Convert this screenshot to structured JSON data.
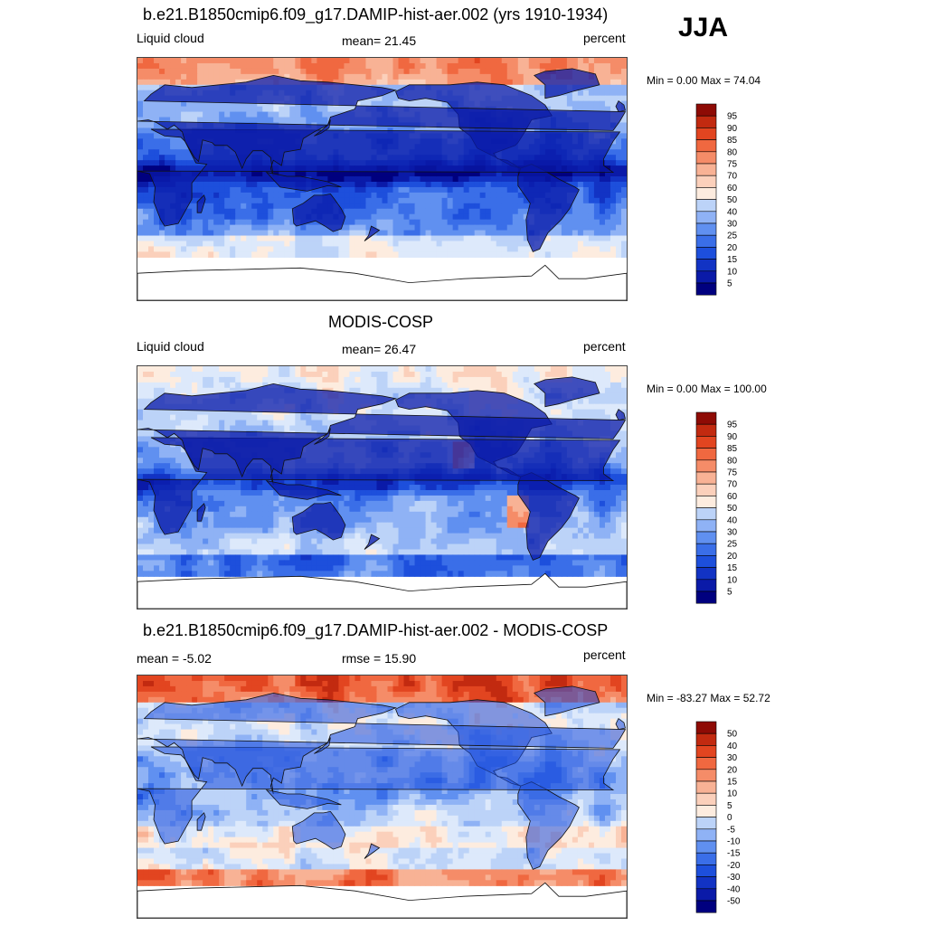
{
  "season": "JJA",
  "palette_levels": [
    "#00007f",
    "#0a1aa8",
    "#1233c4",
    "#1d4fdc",
    "#3a6ee8",
    "#6090f0",
    "#8fb2f5",
    "#bcd3f8",
    "#dde9fb",
    "#fdecdf",
    "#fbd0bb",
    "#f8b295",
    "#f58c68",
    "#f06840",
    "#e24520",
    "#c22a10",
    "#8e0b05"
  ],
  "panels": [
    {
      "id": "model",
      "title": "b.e21.B1850cmip6.f09_g17.DAMIP-hist-aer.002 (yrs 1910-1934)",
      "left_label": "Liquid cloud",
      "center_label": "mean=  21.45",
      "right_label": "percent",
      "minmax": "Min =   0.00 Max =  74.04",
      "colorbar_labels": [
        "95",
        "90",
        "85",
        "80",
        "75",
        "70",
        "60",
        "50",
        "40",
        "30",
        "25",
        "20",
        "15",
        "10",
        "5"
      ],
      "style": "model"
    },
    {
      "id": "obs",
      "title": "MODIS-COSP",
      "left_label": "Liquid cloud",
      "center_label": "mean=  26.47",
      "right_label": "percent",
      "minmax": "Min =   0.00 Max = 100.00",
      "colorbar_labels": [
        "95",
        "90",
        "85",
        "80",
        "75",
        "70",
        "60",
        "50",
        "40",
        "30",
        "25",
        "20",
        "15",
        "10",
        "5"
      ],
      "style": "obs"
    },
    {
      "id": "diff",
      "title": "b.e21.B1850cmip6.f09_g17.DAMIP-hist-aer.002 - MODIS-COSP",
      "left_label": "mean =  -5.02",
      "center_label": "rmse =  15.90",
      "right_label": "percent",
      "minmax": "Min = -83.27 Max =  52.72",
      "colorbar_labels": [
        "50",
        "40",
        "30",
        "20",
        "15",
        "10",
        "5",
        "0",
        "-5",
        "-10",
        "-15",
        "-20",
        "-30",
        "-40",
        "-50"
      ],
      "style": "diff"
    }
  ],
  "chart_data": [
    {
      "type": "heatmap",
      "title": "b.e21.B1850cmip6.f09_g17.DAMIP-hist-aer.002 (yrs 1910-1934)",
      "variable": "Liquid cloud",
      "units": "percent",
      "mean": 21.45,
      "min": 0.0,
      "max": 74.04,
      "contour_levels": [
        5,
        10,
        15,
        20,
        25,
        30,
        40,
        50,
        60,
        70,
        75,
        80,
        85,
        90,
        95
      ]
    },
    {
      "type": "heatmap",
      "title": "MODIS-COSP",
      "variable": "Liquid cloud",
      "units": "percent",
      "mean": 26.47,
      "min": 0.0,
      "max": 100.0,
      "contour_levels": [
        5,
        10,
        15,
        20,
        25,
        30,
        40,
        50,
        60,
        70,
        75,
        80,
        85,
        90,
        95
      ]
    },
    {
      "type": "heatmap",
      "title": "b.e21.B1850cmip6.f09_g17.DAMIP-hist-aer.002 - MODIS-COSP",
      "units": "percent",
      "mean": -5.02,
      "rmse": 15.9,
      "min": -83.27,
      "max": 52.72,
      "contour_levels": [
        -50,
        -40,
        -30,
        -20,
        -15,
        -10,
        -5,
        0,
        5,
        10,
        15,
        20,
        30,
        40,
        50
      ]
    }
  ]
}
